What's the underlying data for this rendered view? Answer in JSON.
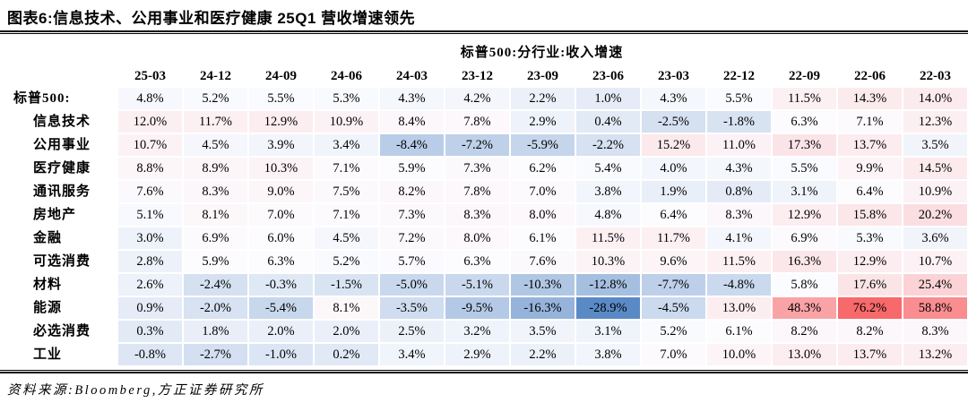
{
  "figure": {
    "title": "图表6:信息技术、公用事业和医疗健康 25Q1 营收增速领先",
    "source": "资料来源:Bloomberg,方正证券研究所"
  },
  "colors": {
    "scale_min_blue": "#5A8AC6",
    "scale_mid_white": "#FCFCFF",
    "scale_max_red": "#F8696B",
    "text": "#000000",
    "background": "#FFFFFF"
  },
  "chart_data": {
    "type": "heatmap",
    "title": "标普500:分行业:收入增速",
    "unit": "%",
    "value_range": [
      -28.9,
      76.2
    ],
    "color_scale": {
      "min_color": "#5A8AC6",
      "mid_color": "#FCFCFF",
      "max_color": "#F8696B",
      "midpoint": "percentile-50"
    },
    "columns": [
      "25-03",
      "24-12",
      "24-09",
      "24-06",
      "24-03",
      "23-12",
      "23-09",
      "23-06",
      "23-03",
      "22-12",
      "22-09",
      "22-06",
      "22-03"
    ],
    "rows": [
      {
        "label": "标普500:",
        "indent": false,
        "values": [
          4.8,
          5.2,
          5.5,
          5.3,
          4.3,
          4.2,
          2.2,
          1.0,
          4.3,
          5.5,
          11.5,
          14.3,
          14.0
        ]
      },
      {
        "label": "信息技术",
        "indent": true,
        "values": [
          12.0,
          11.7,
          12.9,
          10.9,
          8.4,
          7.8,
          2.9,
          0.4,
          -2.5,
          -1.8,
          6.3,
          7.1,
          12.3
        ]
      },
      {
        "label": "公用事业",
        "indent": true,
        "values": [
          10.7,
          4.5,
          3.9,
          3.4,
          -8.4,
          -7.2,
          -5.9,
          -2.2,
          15.2,
          11.0,
          17.3,
          13.7,
          3.5
        ]
      },
      {
        "label": "医疗健康",
        "indent": true,
        "values": [
          8.8,
          8.9,
          10.3,
          7.1,
          5.9,
          7.3,
          6.2,
          5.4,
          4.0,
          4.3,
          5.5,
          9.9,
          14.5
        ]
      },
      {
        "label": "通讯服务",
        "indent": true,
        "values": [
          7.6,
          8.3,
          9.0,
          7.5,
          8.2,
          7.8,
          7.0,
          3.8,
          1.9,
          0.8,
          3.1,
          6.4,
          10.9
        ]
      },
      {
        "label": "房地产",
        "indent": true,
        "values": [
          5.1,
          8.1,
          7.0,
          7.1,
          7.3,
          8.3,
          8.0,
          4.8,
          6.4,
          8.3,
          12.9,
          15.8,
          20.2
        ]
      },
      {
        "label": "金融",
        "indent": true,
        "values": [
          3.0,
          6.9,
          6.0,
          4.5,
          7.2,
          8.0,
          6.1,
          11.5,
          11.7,
          4.1,
          6.9,
          5.3,
          3.6
        ]
      },
      {
        "label": "可选消费",
        "indent": true,
        "values": [
          2.8,
          5.9,
          6.3,
          5.2,
          5.7,
          6.3,
          7.6,
          10.3,
          9.6,
          11.5,
          16.3,
          12.9,
          10.7
        ]
      },
      {
        "label": "材料",
        "indent": true,
        "values": [
          2.6,
          -2.4,
          -0.3,
          -1.5,
          -5.0,
          -5.1,
          -10.3,
          -12.8,
          -7.7,
          -4.8,
          5.8,
          17.6,
          25.4
        ]
      },
      {
        "label": "能源",
        "indent": true,
        "values": [
          0.9,
          -2.0,
          -5.4,
          8.1,
          -3.5,
          -9.5,
          -16.3,
          -28.9,
          -4.5,
          13.0,
          48.3,
          76.2,
          58.8
        ]
      },
      {
        "label": "必选消费",
        "indent": true,
        "values": [
          0.3,
          1.8,
          2.0,
          2.0,
          2.5,
          3.2,
          3.5,
          3.1,
          5.2,
          6.1,
          8.2,
          8.2,
          8.3
        ]
      },
      {
        "label": "工业",
        "indent": true,
        "values": [
          -0.8,
          -2.7,
          -1.0,
          0.2,
          3.4,
          2.9,
          2.2,
          3.8,
          7.0,
          10.0,
          13.0,
          13.7,
          13.2
        ]
      }
    ]
  }
}
